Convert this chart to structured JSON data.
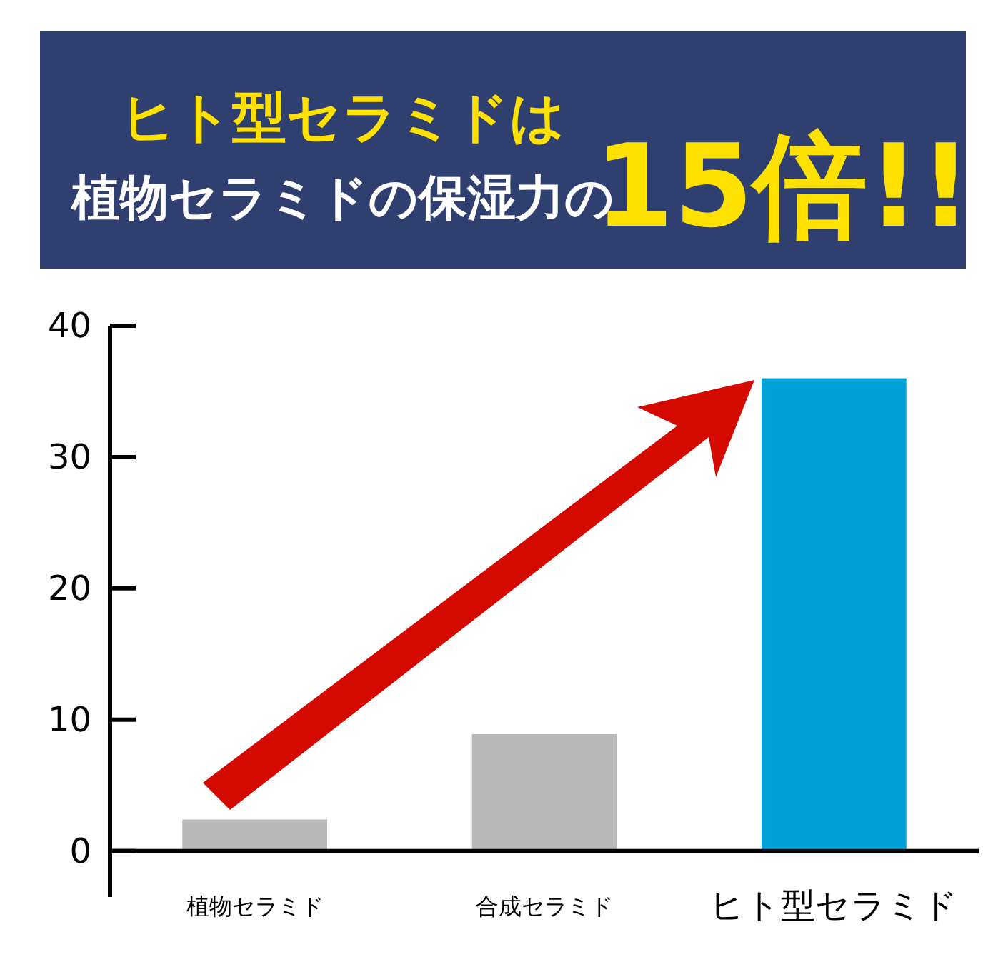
{
  "chart_data": {
    "type": "bar",
    "title": "ヒト型セラミドは",
    "subtitle": "植物セラミドの保湿力の",
    "annotations": [
      "15倍!!"
    ],
    "categories": [
      "植物セラミド",
      "合成セラミド",
      "ヒト型セラミド"
    ],
    "values": [
      2.4,
      8.9,
      36
    ],
    "colors": [
      "#b9b9b9",
      "#b9b9b9",
      "#00a0d8"
    ],
    "ylim": [
      -3.5,
      40
    ],
    "yticks": [
      0,
      10,
      20,
      30,
      40
    ],
    "grid": false
  }
}
